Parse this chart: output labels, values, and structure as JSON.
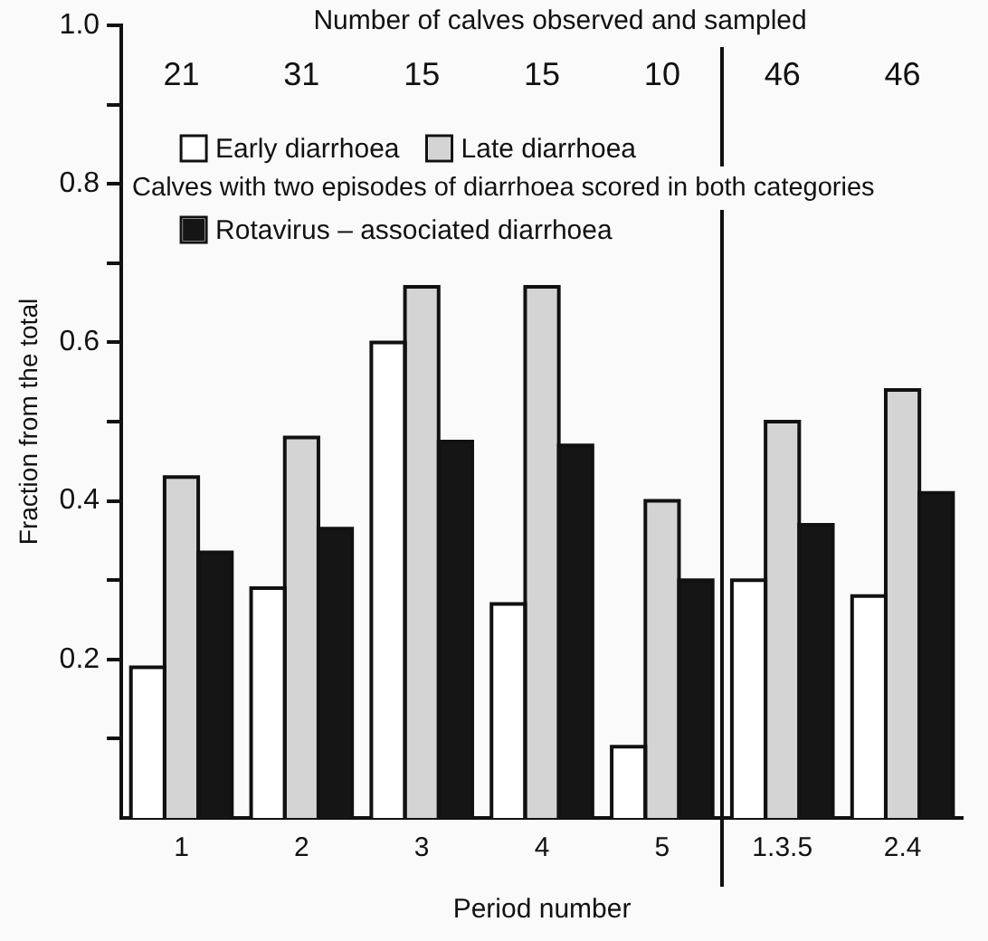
{
  "chart_data": {
    "type": "bar",
    "xlabel": "Period number",
    "ylabel": "Fraction from the total",
    "categories": [
      "1",
      "2",
      "3",
      "4",
      "5",
      "1.3.5",
      "2.4"
    ],
    "series": [
      {
        "name": "Early diarrhoea",
        "color": "#ffffff",
        "values": [
          0.19,
          0.29,
          0.6,
          0.27,
          0.09,
          0.3,
          0.28
        ]
      },
      {
        "name": "Late diarrhoea",
        "color": "#d4d4d4",
        "values": [
          0.43,
          0.48,
          0.67,
          0.67,
          0.4,
          0.5,
          0.54
        ]
      },
      {
        "name": "Rotavirus – associated diarrhoea",
        "color": "#151515",
        "values": [
          0.335,
          0.365,
          0.475,
          0.47,
          0.3,
          0.37,
          0.41
        ]
      }
    ],
    "ylim": [
      0,
      1.0
    ],
    "yticks": [
      {
        "value": 0.1,
        "label": null
      },
      0.2,
      {
        "value": 0.3,
        "label": null
      },
      0.4,
      {
        "value": 0.5,
        "label": null
      },
      0.6,
      {
        "value": 0.7,
        "label": null
      },
      0.8,
      {
        "value": 0.9,
        "label": null
      },
      {
        "value": 1.0,
        "label": "1.0"
      }
    ],
    "grid": false,
    "legend": "top",
    "annotations": [
      "Number of calves observed and sampled",
      "21",
      "31",
      "15",
      "15",
      "10",
      "46",
      "46",
      "Calves with two episodes of diarrhoea scored in both categories"
    ]
  }
}
